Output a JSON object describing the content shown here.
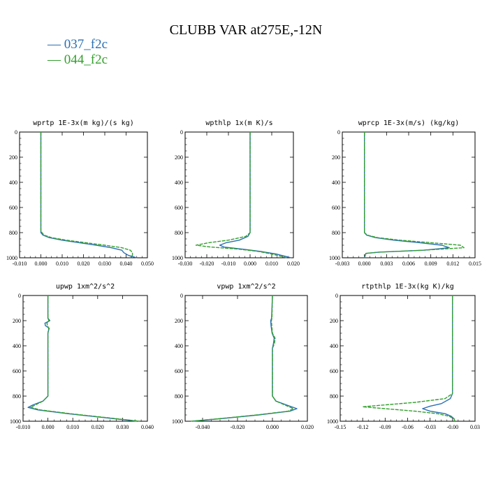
{
  "title": "CLUBB VAR at275E,-12N",
  "legend": [
    {
      "name": "037_f2c",
      "color": "#2a6fb5"
    },
    {
      "name": "044_f2c",
      "color": "#33a02c"
    }
  ],
  "chart_data": [
    {
      "type": "line",
      "title": "wprtp  1E-3x(m kg)/(s kg)",
      "xlim": [
        -0.01,
        0.05
      ],
      "ylim": [
        1000,
        0
      ],
      "xticks": [
        "-0.010",
        "0.000",
        "0.010",
        "0.020",
        "0.030",
        "0.040",
        "0.050"
      ],
      "yticks": [
        "0",
        "200",
        "400",
        "600",
        "800",
        "1000"
      ],
      "series": [
        {
          "name": "037_f2c",
          "y": [
            0,
            200,
            400,
            600,
            780,
            800,
            820,
            840,
            860,
            880,
            900,
            920,
            940,
            960,
            980,
            1000
          ],
          "x": [
            0,
            0,
            0,
            0,
            0,
            0,
            0.001,
            0.004,
            0.01,
            0.018,
            0.026,
            0.033,
            0.038,
            0.039,
            0.041,
            0.045
          ]
        },
        {
          "name": "044_f2c",
          "y": [
            0,
            200,
            400,
            600,
            780,
            800,
            820,
            840,
            860,
            880,
            900,
            920,
            940,
            960,
            980,
            1000
          ],
          "x": [
            0,
            0,
            0,
            0,
            0,
            0.0005,
            0.0015,
            0.005,
            0.012,
            0.021,
            0.03,
            0.038,
            0.042,
            0.043,
            0.043,
            0.042
          ]
        }
      ]
    },
    {
      "type": "line",
      "title": "wpthlp  1x(m K)/s",
      "xlim": [
        -0.03,
        0.02
      ],
      "ylim": [
        1000,
        0
      ],
      "xticks": [
        "-0.030",
        "-0.020",
        "-0.010",
        "0.000",
        "0.010",
        "0.020"
      ],
      "yticks": [
        "0",
        "200",
        "400",
        "600",
        "800",
        "1000"
      ],
      "series": [
        {
          "name": "037_f2c",
          "y": [
            0,
            200,
            400,
            600,
            800,
            830,
            860,
            880,
            900,
            915,
            930,
            950,
            970,
            1000
          ],
          "x": [
            0,
            0,
            0,
            0,
            0,
            -0.001,
            -0.005,
            -0.011,
            -0.014,
            -0.012,
            -0.004,
            0.005,
            0.012,
            0.019
          ]
        },
        {
          "name": "044_f2c",
          "y": [
            0,
            200,
            400,
            600,
            800,
            830,
            860,
            880,
            900,
            915,
            930,
            950,
            970,
            1000
          ],
          "x": [
            0,
            0,
            0,
            0,
            0,
            -0.002,
            -0.01,
            -0.019,
            -0.025,
            -0.018,
            -0.006,
            0.004,
            0.01,
            0.017
          ]
        }
      ]
    },
    {
      "type": "line",
      "title": "wprcp  1E-3x(m/s) (kg/kg)",
      "xlim": [
        -0.003,
        0.015
      ],
      "ylim": [
        1000,
        0
      ],
      "xticks": [
        "-0.003",
        "0.000",
        "0.003",
        "0.006",
        "0.009",
        "0.012",
        "0.015"
      ],
      "yticks": [
        "0",
        "200",
        "400",
        "600",
        "800",
        "1000"
      ],
      "series": [
        {
          "name": "037_f2c",
          "y": [
            0,
            200,
            400,
            600,
            800,
            820,
            840,
            860,
            880,
            900,
            920,
            940,
            955,
            965,
            1000
          ],
          "x": [
            0,
            0,
            0,
            0,
            0,
            0.0003,
            0.0015,
            0.004,
            0.0075,
            0.0105,
            0.0115,
            0.008,
            0.002,
            0.0002,
            0
          ]
        },
        {
          "name": "044_f2c",
          "y": [
            0,
            200,
            400,
            600,
            800,
            820,
            840,
            860,
            880,
            900,
            920,
            940,
            955,
            965,
            1000
          ],
          "x": [
            0,
            0,
            0,
            0,
            0,
            0.0004,
            0.0018,
            0.0048,
            0.009,
            0.013,
            0.0135,
            0.008,
            0.002,
            0.0002,
            0
          ]
        }
      ]
    },
    {
      "type": "line",
      "title": "upwp  1xm^2/s^2",
      "xlim": [
        -0.01,
        0.04
      ],
      "ylim": [
        1000,
        0
      ],
      "xticks": [
        "-0.010",
        "0.000",
        "0.010",
        "0.020",
        "0.030",
        "0.040"
      ],
      "yticks": [
        "0",
        "200",
        "400",
        "600",
        "800",
        "1000"
      ],
      "series": [
        {
          "name": "037_f2c",
          "y": [
            0,
            180,
            200,
            220,
            240,
            260,
            300,
            600,
            800,
            840,
            870,
            890,
            910,
            940,
            970,
            1000
          ],
          "x": [
            0,
            0,
            0.0008,
            -0.0012,
            -0.001,
            0.0005,
            0,
            0,
            0,
            -0.002,
            -0.006,
            -0.008,
            -0.004,
            0.008,
            0.022,
            0.036
          ]
        },
        {
          "name": "044_f2c",
          "y": [
            0,
            180,
            200,
            220,
            240,
            260,
            300,
            600,
            800,
            840,
            870,
            890,
            910,
            940,
            970,
            1000
          ],
          "x": [
            0,
            0,
            0.0004,
            -0.0004,
            -0.0002,
            0.0003,
            0,
            0,
            0,
            -0.002,
            -0.005,
            -0.007,
            -0.003,
            0.009,
            0.023,
            0.037
          ]
        }
      ]
    },
    {
      "type": "line",
      "title": "vpwp  1xm^2/s^2",
      "xlim": [
        -0.05,
        0.02
      ],
      "ylim": [
        1000,
        0
      ],
      "xticks": [
        "-0.040",
        "-0.020",
        "0.000",
        "0.020"
      ],
      "yticks": [
        "0",
        "200",
        "400",
        "600",
        "800",
        "1000"
      ],
      "series": [
        {
          "name": "037_f2c",
          "y": [
            0,
            180,
            200,
            240,
            300,
            340,
            380,
            420,
            800,
            840,
            870,
            900,
            920,
            950,
            980,
            1000
          ],
          "x": [
            0,
            -0.0005,
            -0.001,
            -0.0008,
            -0.0002,
            0.001,
            0.0006,
            0,
            0,
            0.002,
            0.008,
            0.014,
            0.01,
            -0.008,
            -0.03,
            -0.046
          ]
        },
        {
          "name": "044_f2c",
          "y": [
            0,
            180,
            200,
            240,
            300,
            340,
            380,
            420,
            800,
            840,
            870,
            900,
            920,
            950,
            980,
            1000
          ],
          "x": [
            0,
            -0.0003,
            -0.0006,
            -0.0004,
            0,
            0.0015,
            0.0012,
            0,
            0,
            0.002,
            0.007,
            0.012,
            0.009,
            -0.009,
            -0.031,
            -0.047
          ]
        }
      ]
    },
    {
      "type": "line",
      "title": "rtpthlp  1E-3x(kg K)/kg",
      "xlim": [
        -0.15,
        0.03
      ],
      "ylim": [
        1000,
        0
      ],
      "xticks": [
        "-0.15",
        "-0.12",
        "-0.09",
        "-0.06",
        "-0.03",
        "-0.00",
        "0.03"
      ],
      "yticks": [
        "0",
        "200",
        "400",
        "600",
        "800",
        "1000"
      ],
      "series": [
        {
          "name": "037_f2c",
          "y": [
            0,
            200,
            400,
            600,
            780,
            820,
            860,
            880,
            900,
            920,
            940,
            960,
            980,
            1000
          ],
          "x": [
            0,
            0,
            0,
            0,
            0,
            -0.003,
            -0.015,
            -0.03,
            -0.04,
            -0.03,
            -0.01,
            -0.002,
            0.002,
            0.003
          ]
        },
        {
          "name": "044_f2c",
          "y": [
            0,
            200,
            400,
            600,
            780,
            820,
            850,
            870,
            885,
            900,
            920,
            940,
            960,
            980,
            1000
          ],
          "x": [
            0,
            0,
            0,
            0,
            0,
            -0.01,
            -0.05,
            -0.09,
            -0.12,
            -0.09,
            -0.05,
            -0.02,
            -0.005,
            0.002,
            0.003
          ]
        }
      ]
    }
  ]
}
